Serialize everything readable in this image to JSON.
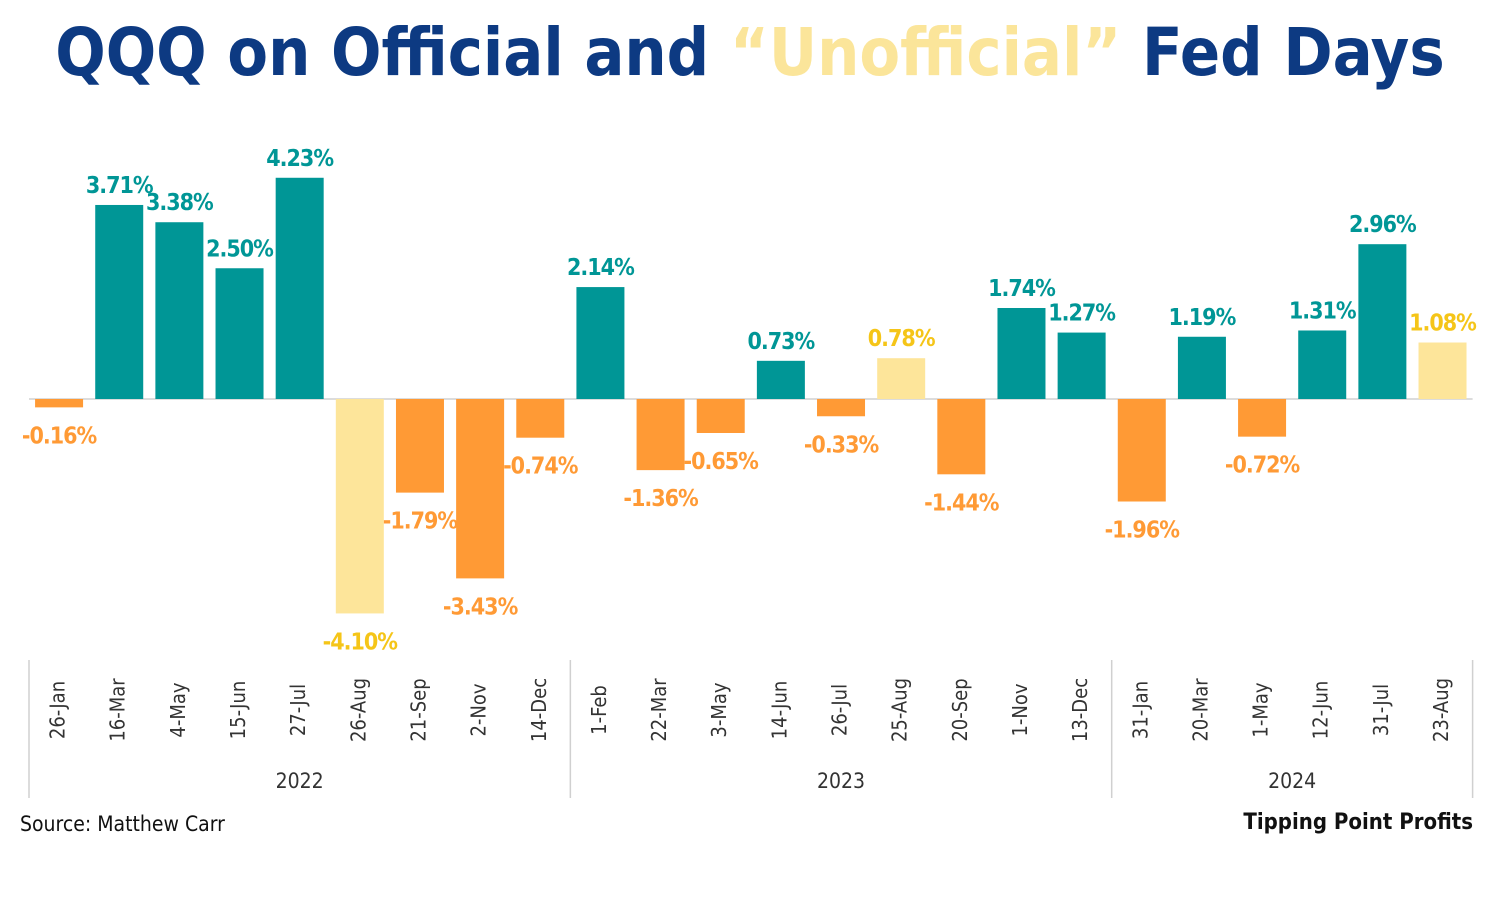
{
  "title": {
    "part1": "QQQ on Official and ",
    "highlight": "“Unofficial”",
    "part2": " Fed Days"
  },
  "source": "Source: Matthew Carr",
  "brand": "Tipping Point Profits",
  "colors": {
    "official_up": "#009696",
    "official_down": "#ff9a35",
    "unofficial": "#fde59a",
    "unofficial_label": "#f5c518",
    "axis": "#d0d0d0",
    "title": "#0d3a82"
  },
  "chart_data": {
    "type": "bar",
    "ylim": [
      -4.5,
      4.7
    ],
    "categories": [
      "26-Jan",
      "16-Mar",
      "4-May",
      "15-Jun",
      "27-Jul",
      "26-Aug",
      "21-Sep",
      "2-Nov",
      "14-Dec",
      "1-Feb",
      "22-Mar",
      "3-May",
      "14-Jun",
      "26-Jul",
      "25-Aug",
      "20-Sep",
      "1-Nov",
      "13-Dec",
      "31-Jan",
      "20-Mar",
      "1-May",
      "12-Jun",
      "31-Jul",
      "23-Aug"
    ],
    "values": [
      -0.16,
      3.71,
      3.38,
      2.5,
      4.23,
      -4.1,
      -1.79,
      -3.43,
      -0.74,
      2.14,
      -1.36,
      -0.65,
      0.73,
      -0.33,
      0.78,
      -1.44,
      1.74,
      1.27,
      -1.96,
      1.19,
      -0.72,
      1.31,
      2.96,
      1.08
    ],
    "data_labels": [
      "-0.16%",
      "3.71%",
      "3.38%",
      "2.50%",
      "4.23%",
      "-4.10%",
      "-1.79%",
      "-3.43%",
      "-0.74%",
      "2.14%",
      "-1.36%",
      "-0.65%",
      "0.73%",
      "-0.33%",
      "0.78%",
      "-1.44%",
      "1.74%",
      "1.27%",
      "-1.96%",
      "1.19%",
      "-0.72%",
      "1.31%",
      "2.96%",
      "1.08%"
    ],
    "unofficial": [
      false,
      false,
      false,
      false,
      false,
      true,
      false,
      false,
      false,
      false,
      false,
      false,
      false,
      false,
      true,
      false,
      false,
      false,
      false,
      false,
      false,
      false,
      false,
      true
    ],
    "years": [
      {
        "label": "2022",
        "count": 9
      },
      {
        "label": "2023",
        "count": 9
      },
      {
        "label": "2024",
        "count": 6
      }
    ],
    "grid": false,
    "legend": "none"
  }
}
